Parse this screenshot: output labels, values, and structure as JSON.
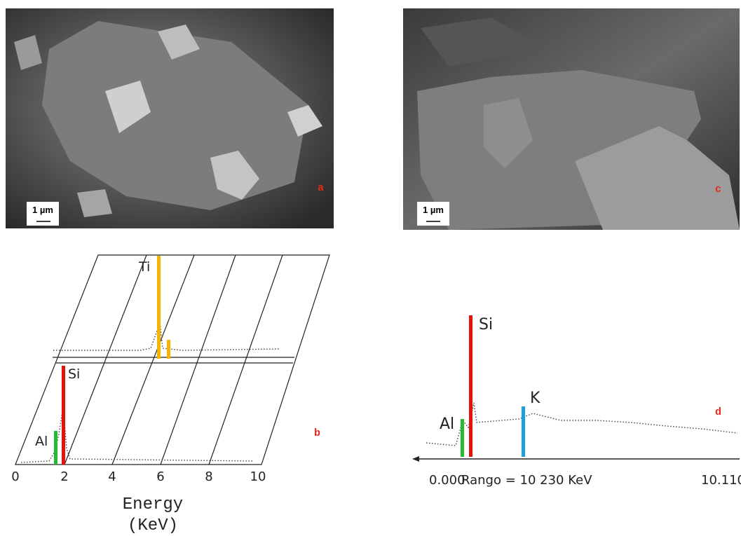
{
  "panels": {
    "a": {
      "label": "a",
      "scale_bar": "1 µm"
    },
    "c": {
      "label": "c",
      "scale_bar": "1 µm"
    },
    "b": {
      "label": "b",
      "x_ticks": [
        "0",
        "2",
        "4",
        "6",
        "8",
        "10"
      ],
      "x_axis_title": "Energy",
      "x_axis_unit": "(KeV)",
      "peaks": [
        "Ti",
        "Si",
        "Al"
      ]
    },
    "d": {
      "label": "d",
      "peaks": [
        "Si",
        "K",
        "Al"
      ],
      "axis_start": "0.000",
      "range": "Rango = 10 230 KeV",
      "axis_end": "10.110"
    }
  }
}
